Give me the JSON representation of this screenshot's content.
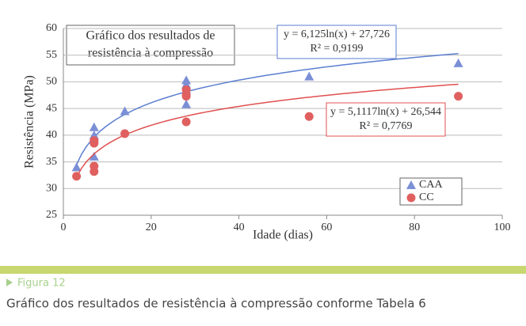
{
  "chart_data": {
    "type": "scatter",
    "title": [
      "Gráfico dos resultados de",
      "resistência à compressão"
    ],
    "xlabel": "Idade (dias)",
    "ylabel": "Resistência (MPa)",
    "xlim": [
      0,
      100
    ],
    "xticks": [
      0,
      20,
      40,
      60,
      80,
      100
    ],
    "ylim": [
      25,
      60
    ],
    "yticks": [
      25,
      30,
      35,
      40,
      45,
      50,
      55,
      60
    ],
    "grid": true,
    "legend": "lower right",
    "series": [
      {
        "name": "CAA",
        "color": "#7b8fd6",
        "marker": "triangle",
        "x": [
          3,
          7,
          7,
          7,
          7,
          14,
          28,
          28,
          28,
          28,
          56,
          90
        ],
        "values": [
          34,
          41.5,
          40,
          39.5,
          36,
          44.5,
          50.3,
          49.5,
          48.5,
          45.8,
          51,
          53.5
        ],
        "trendline": {
          "equation": "y = 6,125ln(x) + 27,726",
          "r2": "R² = 0,9199",
          "a": 6.125,
          "b": 27.726,
          "color": "#5b7fd0"
        }
      },
      {
        "name": "CC",
        "color": "#e06060",
        "marker": "circle",
        "x": [
          3,
          7,
          7,
          7,
          7,
          14,
          28,
          28,
          28,
          28,
          56,
          90
        ],
        "values": [
          32.3,
          39,
          38.5,
          34.2,
          33.2,
          40.3,
          48.5,
          47.5,
          47.3,
          42.5,
          43.5,
          47.3
        ],
        "trendline": {
          "equation": "y = 5,1117ln(x) + 26,544",
          "r2": "R² = 0,7769",
          "a": 5.1117,
          "b": 26.544,
          "color": "#e05050"
        }
      }
    ]
  },
  "caption": {
    "figure": "Figura 12",
    "text": "Gráfico dos resultados de resistência à compressão conforme Tabela 6"
  }
}
